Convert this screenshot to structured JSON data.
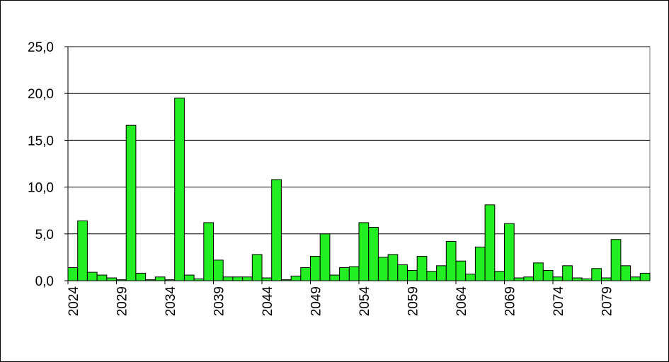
{
  "chart_data": {
    "type": "bar",
    "categories": [
      "2024",
      null,
      null,
      null,
      null,
      "2029",
      null,
      null,
      null,
      null,
      "2034",
      null,
      null,
      null,
      null,
      "2039",
      null,
      null,
      null,
      null,
      "2044",
      null,
      null,
      null,
      null,
      "2049",
      null,
      null,
      null,
      null,
      "2054",
      null,
      null,
      null,
      null,
      "2059",
      null,
      null,
      null,
      null,
      "2064",
      null,
      null,
      null,
      null,
      "2069",
      null,
      null,
      null,
      null,
      "2074",
      null,
      null,
      null,
      null,
      "2079",
      null,
      null,
      null,
      null
    ],
    "values": [
      1.4,
      6.4,
      0.9,
      0.6,
      0.3,
      0.1,
      16.6,
      0.8,
      0.1,
      0.4,
      0.1,
      19.5,
      0.6,
      0.2,
      6.2,
      2.2,
      0.4,
      0.4,
      0.4,
      2.8,
      0.3,
      10.8,
      0.1,
      0.5,
      1.4,
      2.6,
      5.0,
      0.6,
      1.4,
      1.5,
      6.2,
      5.7,
      2.5,
      2.8,
      1.7,
      1.1,
      2.6,
      1.0,
      1.6,
      4.2,
      2.1,
      0.7,
      3.6,
      8.1,
      1.0,
      6.1,
      0.3,
      0.4,
      1.9,
      1.1,
      0.4,
      1.6,
      0.3,
      0.2,
      1.3,
      0.3,
      4.4,
      1.6,
      0.4,
      0.8
    ],
    "color": "#22ee22",
    "ylim": [
      0,
      25
    ],
    "yticks": [
      {
        "value": 0,
        "label": "0,0"
      },
      {
        "value": 5,
        "label": "5,0"
      },
      {
        "value": 10,
        "label": "10,0"
      },
      {
        "value": 15,
        "label": "15,0"
      },
      {
        "value": 20,
        "label": "20,0"
      },
      {
        "value": 25,
        "label": "25,0"
      }
    ],
    "grid": true
  }
}
